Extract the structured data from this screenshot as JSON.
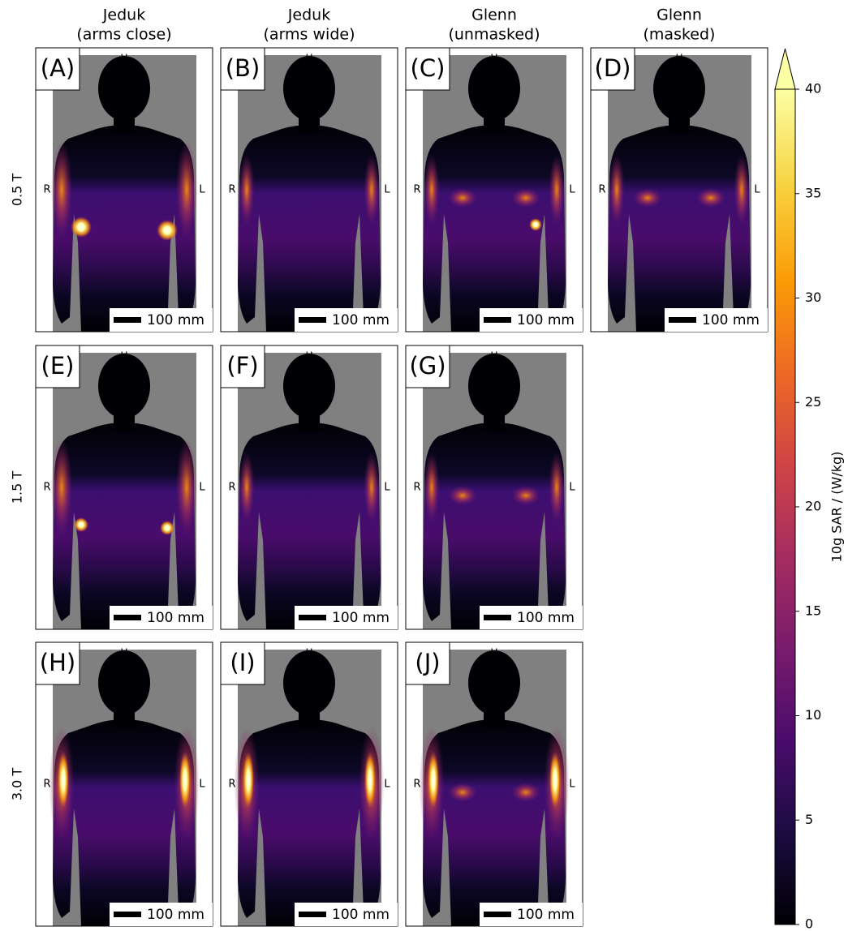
{
  "columns": [
    {
      "title": "Jeduk",
      "subtitle": "(arms close)"
    },
    {
      "title": "Jeduk",
      "subtitle": "(arms wide)"
    },
    {
      "title": "Glenn",
      "subtitle": "(unmasked)"
    },
    {
      "title": "Glenn",
      "subtitle": "(masked)"
    }
  ],
  "rows": [
    {
      "label": "0.5 T",
      "panels": [
        "(A)",
        "(B)",
        "(C)",
        "(D)"
      ]
    },
    {
      "label": "1.5 T",
      "panels": [
        "(E)",
        "(F)",
        "(G)"
      ]
    },
    {
      "label": "3.0 T",
      "panels": [
        "(H)",
        "(I)",
        "(J)"
      ]
    }
  ],
  "orientation": {
    "head": "H",
    "right": "R",
    "left": "L"
  },
  "scale_bar": "100 mm",
  "colorbar": {
    "label": "10g SAR / (W/kg)",
    "lim": [
      0,
      40
    ],
    "ticks": [
      0,
      5,
      10,
      15,
      20,
      25,
      30,
      35,
      40
    ],
    "colormap": "inferno",
    "extend": "max"
  }
}
